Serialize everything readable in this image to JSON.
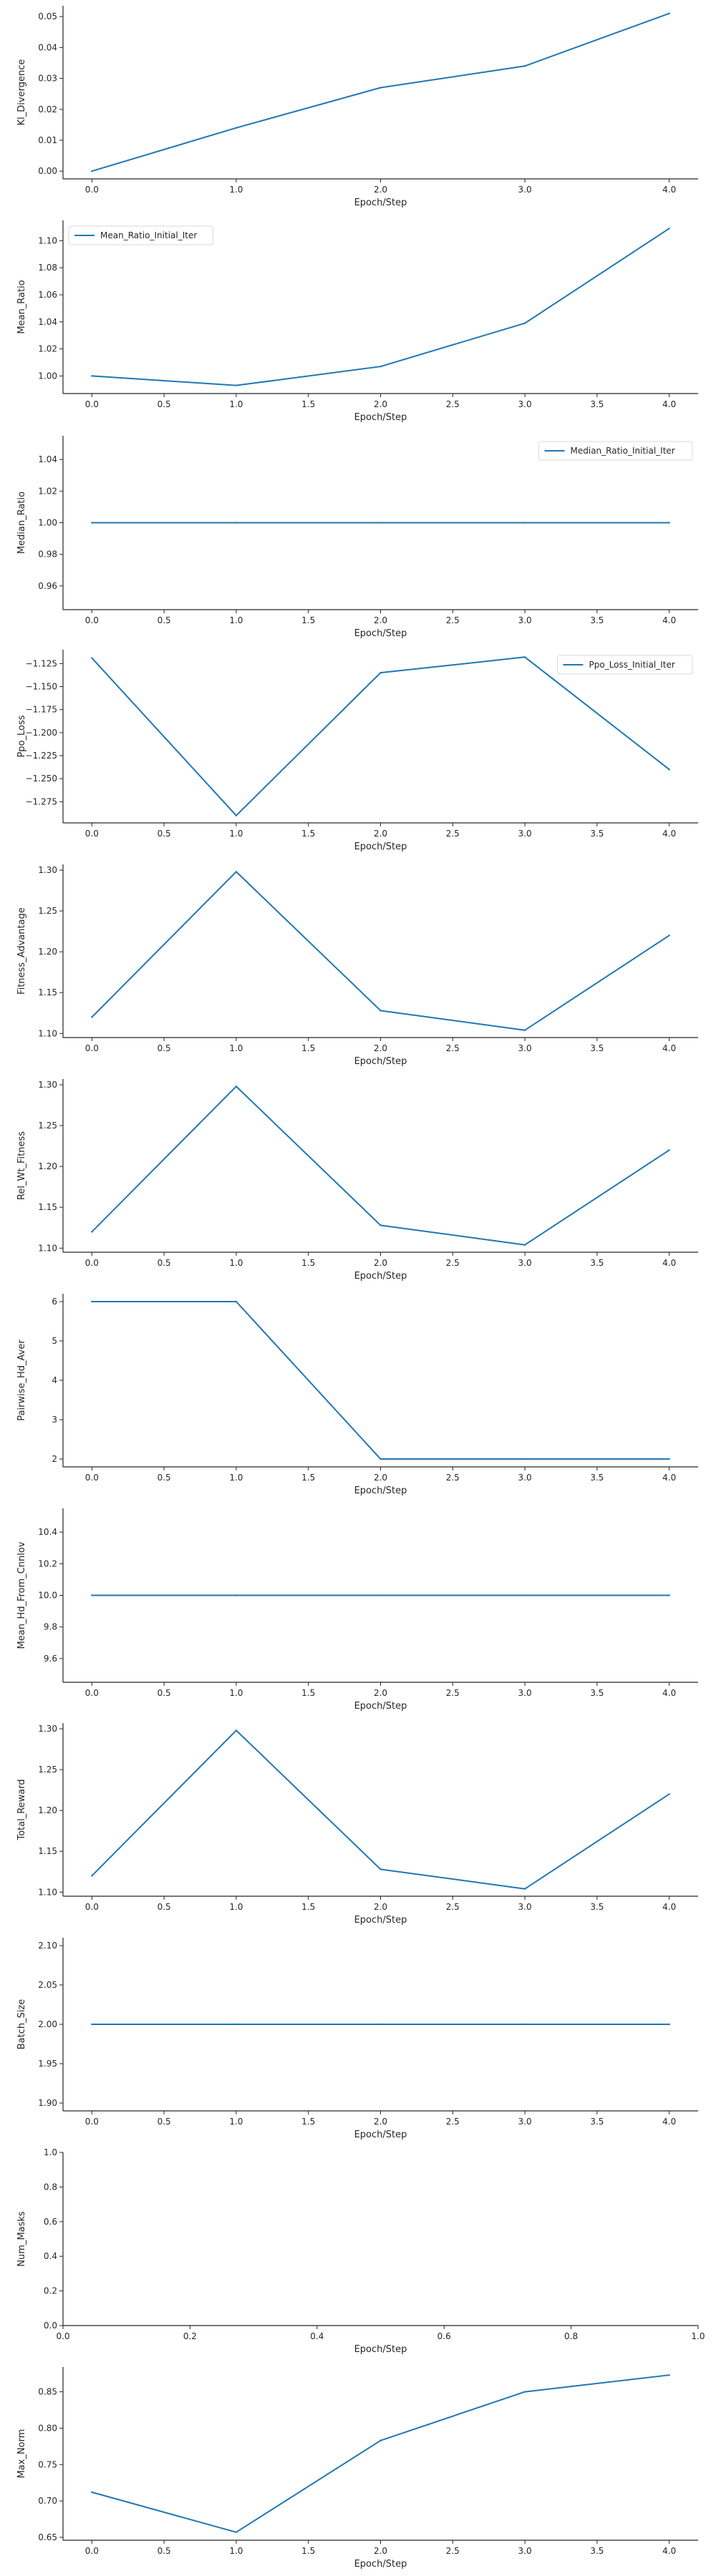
{
  "colors": {
    "line": "#1f77b4",
    "axis": "#262626"
  },
  "chart_data": [
    {
      "type": "line",
      "xlabel": "Epoch/Step",
      "ylabel": "Kl_Divergence",
      "x": [
        0,
        1,
        2,
        3,
        4
      ],
      "series": [
        {
          "values": [
            0.0,
            0.014,
            0.027,
            0.034,
            0.051
          ]
        }
      ],
      "xlim": [
        -0.2,
        4.2
      ],
      "ylim": [
        -0.0025,
        0.0535
      ],
      "xticks": [
        0.0,
        1.0,
        2.0,
        3.0,
        4.0
      ],
      "xtick_labels": [
        "0.0",
        "1.0",
        "2.0",
        "3.0",
        "4.0"
      ],
      "yticks": [
        0.0,
        0.01,
        0.02,
        0.03,
        0.04,
        0.05
      ],
      "ytick_labels": [
        "0.00",
        "0.01",
        "0.02",
        "0.03",
        "0.04",
        "0.05"
      ],
      "legend": "none"
    },
    {
      "type": "line",
      "xlabel": "Epoch/Step",
      "ylabel": "Mean_Ratio",
      "x": [
        0,
        1,
        2,
        3,
        4
      ],
      "series": [
        {
          "name": "Mean_Ratio_Initial_Iter",
          "values": [
            1.0,
            0.993,
            1.007,
            1.039,
            1.109
          ]
        }
      ],
      "xlim": [
        -0.2,
        4.2
      ],
      "ylim": [
        0.987,
        1.115
      ],
      "xticks": [
        0,
        0.5,
        1,
        1.5,
        2,
        2.5,
        3,
        3.5,
        4
      ],
      "xtick_labels": [
        "0.0",
        "0.5",
        "1.0",
        "1.5",
        "2.0",
        "2.5",
        "3.0",
        "3.5",
        "4.0"
      ],
      "yticks": [
        1.0,
        1.02,
        1.04,
        1.06,
        1.08,
        1.1
      ],
      "ytick_labels": [
        "1.00",
        "1.02",
        "1.04",
        "1.06",
        "1.08",
        "1.10"
      ],
      "legend": "upper left"
    },
    {
      "type": "line",
      "xlabel": "Epoch/Step",
      "ylabel": "Median_Ratio",
      "x": [
        0,
        1,
        2,
        3,
        4
      ],
      "series": [
        {
          "name": "Median_Ratio_Initial_Iter",
          "values": [
            1.0,
            1.0,
            1.0,
            1.0,
            1.0
          ]
        }
      ],
      "xlim": [
        -0.2,
        4.2
      ],
      "ylim": [
        0.945,
        1.055
      ],
      "xticks": [
        0,
        0.5,
        1,
        1.5,
        2,
        2.5,
        3,
        3.5,
        4
      ],
      "xtick_labels": [
        "0.0",
        "0.5",
        "1.0",
        "1.5",
        "2.0",
        "2.5",
        "3.0",
        "3.5",
        "4.0"
      ],
      "yticks": [
        0.96,
        0.98,
        1.0,
        1.02,
        1.04
      ],
      "ytick_labels": [
        "0.96",
        "0.98",
        "1.00",
        "1.02",
        "1.04"
      ],
      "legend": "upper right"
    },
    {
      "type": "line",
      "xlabel": "Epoch/Step",
      "ylabel": "Ppo_Loss",
      "x": [
        0,
        1,
        2,
        3,
        4
      ],
      "series": [
        {
          "name": "Ppo_Loss_Initial_Iter",
          "values": [
            -1.119,
            -1.29,
            -1.135,
            -1.118,
            -1.24
          ]
        }
      ],
      "xlim": [
        -0.2,
        4.2
      ],
      "ylim": [
        -1.298,
        -1.11
      ],
      "xticks": [
        0,
        0.5,
        1,
        1.5,
        2,
        2.5,
        3,
        3.5,
        4
      ],
      "xtick_labels": [
        "0.0",
        "0.5",
        "1.0",
        "1.5",
        "2.0",
        "2.5",
        "3.0",
        "3.5",
        "4.0"
      ],
      "yticks": [
        -1.125,
        -1.15,
        -1.175,
        -1.2,
        -1.225,
        -1.25,
        -1.275
      ],
      "ytick_labels": [
        "−1.125",
        "−1.150",
        "−1.175",
        "−1.200",
        "−1.225",
        "−1.250",
        "−1.275"
      ],
      "legend": "upper right"
    },
    {
      "type": "line",
      "xlabel": "Epoch/Step",
      "ylabel": "Fitness_Advantage",
      "x": [
        0,
        1,
        2,
        3,
        4
      ],
      "series": [
        {
          "values": [
            1.12,
            1.298,
            1.128,
            1.104,
            1.22
          ]
        }
      ],
      "xlim": [
        -0.2,
        4.2
      ],
      "ylim": [
        1.095,
        1.307
      ],
      "xticks": [
        0,
        0.5,
        1,
        1.5,
        2,
        2.5,
        3,
        3.5,
        4
      ],
      "xtick_labels": [
        "0.0",
        "0.5",
        "1.0",
        "1.5",
        "2.0",
        "2.5",
        "3.0",
        "3.5",
        "4.0"
      ],
      "yticks": [
        1.1,
        1.15,
        1.2,
        1.25,
        1.3
      ],
      "ytick_labels": [
        "1.10",
        "1.15",
        "1.20",
        "1.25",
        "1.30"
      ],
      "legend": "none"
    },
    {
      "type": "line",
      "xlabel": "Epoch/Step",
      "ylabel": "Rel_Wt_Fitness",
      "x": [
        0,
        1,
        2,
        3,
        4
      ],
      "series": [
        {
          "values": [
            1.12,
            1.298,
            1.128,
            1.104,
            1.22
          ]
        }
      ],
      "xlim": [
        -0.2,
        4.2
      ],
      "ylim": [
        1.095,
        1.307
      ],
      "xticks": [
        0,
        0.5,
        1,
        1.5,
        2,
        2.5,
        3,
        3.5,
        4
      ],
      "xtick_labels": [
        "0.0",
        "0.5",
        "1.0",
        "1.5",
        "2.0",
        "2.5",
        "3.0",
        "3.5",
        "4.0"
      ],
      "yticks": [
        1.1,
        1.15,
        1.2,
        1.25,
        1.3
      ],
      "ytick_labels": [
        "1.10",
        "1.15",
        "1.20",
        "1.25",
        "1.30"
      ],
      "legend": "none"
    },
    {
      "type": "line",
      "xlabel": "Epoch/Step",
      "ylabel": "Pairwise_Hd_Aver",
      "x": [
        0,
        1,
        2,
        3,
        4
      ],
      "series": [
        {
          "values": [
            6,
            6,
            2,
            2,
            2
          ]
        }
      ],
      "xlim": [
        -0.2,
        4.2
      ],
      "ylim": [
        1.8,
        6.2
      ],
      "xticks": [
        0,
        0.5,
        1,
        1.5,
        2,
        2.5,
        3,
        3.5,
        4
      ],
      "xtick_labels": [
        "0.0",
        "0.5",
        "1.0",
        "1.5",
        "2.0",
        "2.5",
        "3.0",
        "3.5",
        "4.0"
      ],
      "yticks": [
        2,
        3,
        4,
        5,
        6
      ],
      "ytick_labels": [
        "2",
        "3",
        "4",
        "5",
        "6"
      ],
      "legend": "none"
    },
    {
      "type": "line",
      "xlabel": "Epoch/Step",
      "ylabel": "Mean_Hd_From_Cnnlov",
      "x": [
        0,
        1,
        2,
        3,
        4
      ],
      "series": [
        {
          "values": [
            10,
            10,
            10,
            10,
            10
          ]
        }
      ],
      "xlim": [
        -0.2,
        4.2
      ],
      "ylim": [
        9.45,
        10.55
      ],
      "xticks": [
        0,
        0.5,
        1,
        1.5,
        2,
        2.5,
        3,
        3.5,
        4
      ],
      "xtick_labels": [
        "0.0",
        "0.5",
        "1.0",
        "1.5",
        "2.0",
        "2.5",
        "3.0",
        "3.5",
        "4.0"
      ],
      "yticks": [
        9.6,
        9.8,
        10.0,
        10.2,
        10.4
      ],
      "ytick_labels": [
        "9.6",
        "9.8",
        "10.0",
        "10.2",
        "10.4"
      ],
      "legend": "none"
    },
    {
      "type": "line",
      "xlabel": "Epoch/Step",
      "ylabel": "Total_Reward",
      "x": [
        0,
        1,
        2,
        3,
        4
      ],
      "series": [
        {
          "values": [
            1.12,
            1.298,
            1.128,
            1.104,
            1.22
          ]
        }
      ],
      "xlim": [
        -0.2,
        4.2
      ],
      "ylim": [
        1.095,
        1.307
      ],
      "xticks": [
        0,
        0.5,
        1,
        1.5,
        2,
        2.5,
        3,
        3.5,
        4
      ],
      "xtick_labels": [
        "0.0",
        "0.5",
        "1.0",
        "1.5",
        "2.0",
        "2.5",
        "3.0",
        "3.5",
        "4.0"
      ],
      "yticks": [
        1.1,
        1.15,
        1.2,
        1.25,
        1.3
      ],
      "ytick_labels": [
        "1.10",
        "1.15",
        "1.20",
        "1.25",
        "1.30"
      ],
      "legend": "none"
    },
    {
      "type": "line",
      "xlabel": "Epoch/Step",
      "ylabel": "Batch_Size",
      "x": [
        0,
        1,
        2,
        3,
        4
      ],
      "series": [
        {
          "values": [
            2,
            2,
            2,
            2,
            2
          ]
        }
      ],
      "xlim": [
        -0.2,
        4.2
      ],
      "ylim": [
        1.89,
        2.11
      ],
      "xticks": [
        0,
        0.5,
        1,
        1.5,
        2,
        2.5,
        3,
        3.5,
        4
      ],
      "xtick_labels": [
        "0.0",
        "0.5",
        "1.0",
        "1.5",
        "2.0",
        "2.5",
        "3.0",
        "3.5",
        "4.0"
      ],
      "yticks": [
        1.9,
        1.95,
        2.0,
        2.05,
        2.1
      ],
      "ytick_labels": [
        "1.90",
        "1.95",
        "2.00",
        "2.05",
        "2.10"
      ],
      "legend": "none"
    },
    {
      "type": "line",
      "xlabel": "Epoch/Step",
      "ylabel": "Num_Masks",
      "x": [],
      "series": [
        {
          "values": []
        }
      ],
      "xlim": [
        0,
        1
      ],
      "ylim": [
        0,
        1
      ],
      "xticks": [
        0,
        0.2,
        0.4,
        0.6,
        0.8,
        1.0
      ],
      "xtick_labels": [
        "0.0",
        "0.2",
        "0.4",
        "0.6",
        "0.8",
        "1.0"
      ],
      "yticks": [
        0,
        0.2,
        0.4,
        0.6,
        0.8,
        1.0
      ],
      "ytick_labels": [
        "0.0",
        "0.2",
        "0.4",
        "0.6",
        "0.8",
        "1.0"
      ],
      "legend": "none"
    },
    {
      "type": "line",
      "xlabel": "Epoch/Step",
      "ylabel": "Max_Norm",
      "x": [
        0,
        1,
        2,
        3,
        4
      ],
      "series": [
        {
          "values": [
            0.712,
            0.657,
            0.783,
            0.85,
            0.873
          ]
        }
      ],
      "xlim": [
        -0.2,
        4.2
      ],
      "ylim": [
        0.646,
        0.884
      ],
      "xticks": [
        0,
        0.5,
        1,
        1.5,
        2,
        2.5,
        3,
        3.5,
        4
      ],
      "xtick_labels": [
        "0.0",
        "0.5",
        "1.0",
        "1.5",
        "2.0",
        "2.5",
        "3.0",
        "3.5",
        "4.0"
      ],
      "yticks": [
        0.65,
        0.7,
        0.75,
        0.8,
        0.85
      ],
      "ytick_labels": [
        "0.65",
        "0.70",
        "0.75",
        "0.80",
        "0.85"
      ],
      "legend": "none"
    }
  ]
}
